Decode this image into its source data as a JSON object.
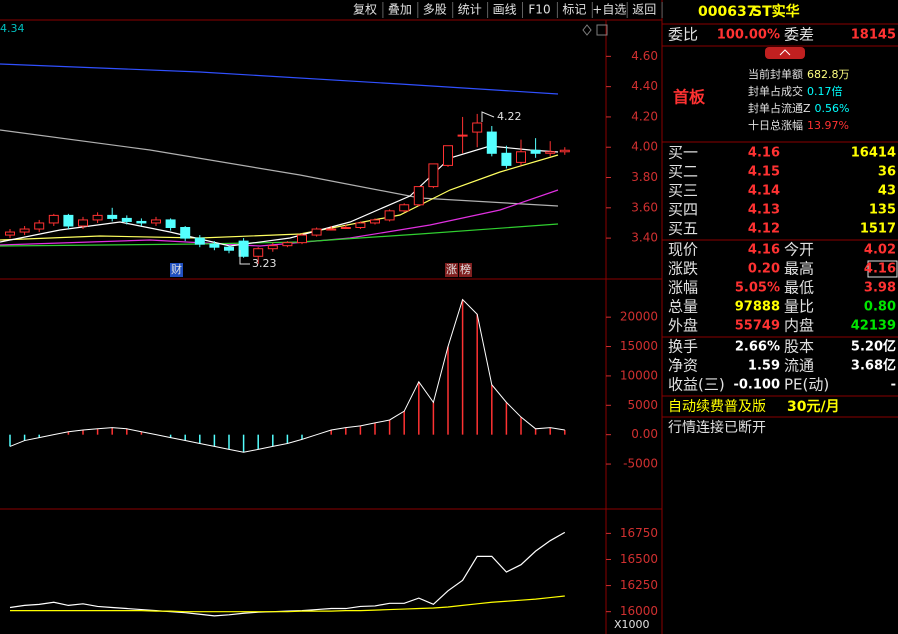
{
  "toolbar": [
    "复权",
    "叠加",
    "多股",
    "统计",
    "画线",
    "F10",
    "标记",
    "+自选",
    "返回"
  ],
  "stock": {
    "code": "000637",
    "name": "ST实华"
  },
  "order_ratio": {
    "label": "委比",
    "value": "100.00%",
    "diff_label": "委差",
    "diff_value": "18145"
  },
  "board": {
    "title": "首板",
    "items": [
      {
        "label": "当前封单额",
        "value": "682.8万"
      },
      {
        "label": "封单占成交",
        "value": "0.17倍"
      },
      {
        "label": "封单占流通Z",
        "value": "0.56%"
      },
      {
        "label": "十日总涨幅",
        "value": "13.97%"
      }
    ]
  },
  "bids": [
    {
      "label": "买一",
      "price": "4.16",
      "volume": "16414"
    },
    {
      "label": "买二",
      "price": "4.15",
      "volume": "36"
    },
    {
      "label": "买三",
      "price": "4.14",
      "volume": "43"
    },
    {
      "label": "买四",
      "price": "4.13",
      "volume": "135"
    },
    {
      "label": "买五",
      "price": "4.12",
      "volume": "1517"
    }
  ],
  "quotes": [
    [
      "现价",
      "4.16",
      "今开",
      "4.02"
    ],
    [
      "涨跌",
      "0.20",
      "最高",
      "4.16"
    ],
    [
      "涨幅",
      "5.05%",
      "最低",
      "3.98"
    ],
    [
      "总量",
      "97888",
      "量比",
      "0.80"
    ],
    [
      "外盘",
      "55749",
      "内盘",
      "42139"
    ],
    [
      "换手",
      "2.66%",
      "股本",
      "5.20亿"
    ],
    [
      "净资",
      "1.59",
      "流通",
      "3.68亿"
    ],
    [
      "收益(三)",
      "-0.100",
      "PE(动)",
      "-"
    ]
  ],
  "promo": {
    "text": "自动续费普及版",
    "price": "30元/月"
  },
  "status": "行情连接已断开",
  "chart_data": [
    {
      "type": "candlestick",
      "annotations": {
        "top_left": "4.34",
        "high": "4.22",
        "low": "3.23"
      },
      "events": [
        "财",
        "涨",
        "榜"
      ],
      "open": [
        3.42,
        3.44,
        3.46,
        3.5,
        3.55,
        3.48,
        3.52,
        3.55,
        3.53,
        3.51,
        3.5,
        3.52,
        3.47,
        3.4,
        3.36,
        3.34,
        3.38,
        3.28,
        3.33,
        3.35,
        3.37,
        3.42,
        3.46,
        3.47,
        3.47,
        3.5,
        3.52,
        3.58,
        3.62,
        3.74,
        3.88,
        4.08,
        4.1,
        4.1,
        3.96,
        3.9,
        3.98,
        3.96,
        3.97
      ],
      "high": [
        3.46,
        3.48,
        3.52,
        3.56,
        3.56,
        3.54,
        3.57,
        3.6,
        3.55,
        3.53,
        3.54,
        3.53,
        3.48,
        3.42,
        3.38,
        3.35,
        3.4,
        3.34,
        3.37,
        3.38,
        3.43,
        3.47,
        3.48,
        3.49,
        3.51,
        3.53,
        3.59,
        3.63,
        3.74,
        3.89,
        4.01,
        4.2,
        4.22,
        4.14,
        4.01,
        4.05,
        4.06,
        4.04,
        4.0
      ],
      "low": [
        3.4,
        3.42,
        3.44,
        3.48,
        3.46,
        3.46,
        3.5,
        3.51,
        3.49,
        3.48,
        3.48,
        3.45,
        3.38,
        3.34,
        3.32,
        3.3,
        3.27,
        3.23,
        3.31,
        3.34,
        3.36,
        3.41,
        3.45,
        3.46,
        3.46,
        3.49,
        3.51,
        3.57,
        3.61,
        3.73,
        3.87,
        3.96,
        4.0,
        3.94,
        3.86,
        3.88,
        3.93,
        3.94,
        3.95
      ],
      "close": [
        3.44,
        3.46,
        3.5,
        3.55,
        3.48,
        3.52,
        3.55,
        3.53,
        3.51,
        3.5,
        3.52,
        3.47,
        3.4,
        3.36,
        3.34,
        3.32,
        3.28,
        3.33,
        3.35,
        3.37,
        3.42,
        3.46,
        3.46,
        3.47,
        3.5,
        3.52,
        3.58,
        3.62,
        3.74,
        3.89,
        4.01,
        4.08,
        4.16,
        3.96,
        3.88,
        3.97,
        3.96,
        3.97,
        3.98
      ],
      "ylim": [
        3.13,
        4.84
      ],
      "yticks": [
        {
          "value": 4.6,
          "label": "4.60"
        },
        {
          "value": 4.4,
          "label": "4.40"
        },
        {
          "value": 4.2,
          "label": "4.20"
        },
        {
          "value": 4.0,
          "label": "4.00"
        },
        {
          "value": 3.8,
          "label": "3.80"
        },
        {
          "value": 3.6,
          "label": "3.60"
        },
        {
          "value": 3.4,
          "label": "3.40"
        }
      ]
    },
    {
      "type": "bar",
      "values": [
        -2000,
        -1000,
        -500,
        0,
        500,
        800,
        1000,
        1200,
        1000,
        500,
        0,
        -500,
        -1000,
        -1500,
        -2000,
        -2500,
        -3000,
        -2500,
        -2000,
        -1500,
        -800,
        0,
        800,
        1200,
        1500,
        2000,
        2500,
        4000,
        9000,
        5500,
        15000,
        23000,
        20500,
        8500,
        5500,
        3000,
        1000,
        1200,
        800
      ],
      "ylim": [
        -12650,
        26325
      ],
      "yticks": [
        20000,
        15000,
        10000,
        5000,
        {
          "value": 0,
          "label": "0.00"
        },
        -5000
      ]
    },
    {
      "type": "line",
      "series": [
        {
          "name": "OBV",
          "color": "#ffffff",
          "values": [
            16040,
            16060,
            16070,
            16090,
            16060,
            16075,
            16050,
            16040,
            16030,
            16020,
            16010,
            16000,
            15990,
            15975,
            15960,
            15970,
            15985,
            15995,
            16000,
            16005,
            16010,
            16020,
            16030,
            16030,
            16050,
            16055,
            16080,
            16080,
            16130,
            16070,
            16200,
            16300,
            16530,
            16530,
            16380,
            16450,
            16580,
            16680,
            16760
          ]
        },
        {
          "name": "MAOBV",
          "color": "#ffff00",
          "values": [
            16010,
            16010,
            16010,
            16010,
            16010,
            16010,
            16010,
            16010,
            16010,
            16010,
            16005,
            16005,
            16000,
            16000,
            16000,
            16000,
            16000,
            16000,
            16000,
            16000,
            16005,
            16005,
            16005,
            16010,
            16010,
            16015,
            16020,
            16025,
            16030,
            16035,
            16045,
            16060,
            16075,
            16090,
            16100,
            16110,
            16120,
            16135,
            16150
          ]
        }
      ],
      "axis_unit": "X1000",
      "ylim": [
        15786,
        16974
      ],
      "yticks": [
        16750,
        16500,
        16250,
        16000
      ]
    }
  ]
}
